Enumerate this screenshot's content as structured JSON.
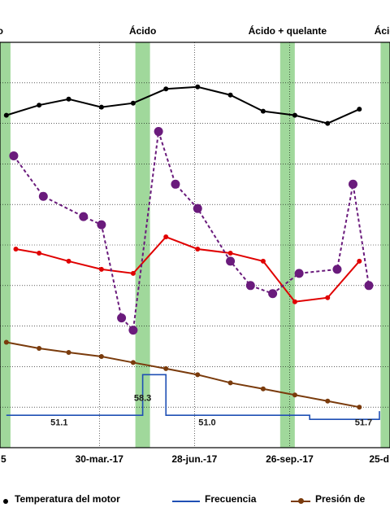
{
  "chart_data": {
    "type": "line",
    "title": "",
    "x_axis": {
      "tick_labels": [
        "30-mar.-17",
        "28-jun.-17",
        "26-sep.-17"
      ],
      "partial_tick_labels": [
        "5",
        "25-d"
      ],
      "range_dates": [
        "2016-12-26",
        "2017-12-30"
      ]
    },
    "treatments": [
      {
        "label": "o",
        "date": "2016-12-29",
        "type": "partial"
      },
      {
        "label": "Ácido",
        "date": "2017-05-10"
      },
      {
        "label": "Ácido + quelante",
        "date": "2017-09-24"
      },
      {
        "label": "Ácido",
        "date": "2017-12-28"
      }
    ],
    "frequency_labels": [
      "51.1",
      "58.3",
      "51.0",
      "51.7"
    ],
    "series": [
      {
        "name": "Temperatura del motor",
        "color": "#000000",
        "points": [
          [
            "2017-01-01",
            8.2
          ],
          [
            "2017-02-01",
            8.45
          ],
          [
            "2017-03-01",
            8.6
          ],
          [
            "2017-04-01",
            8.4
          ],
          [
            "2017-05-01",
            8.5
          ],
          [
            "2017-06-01",
            8.85
          ],
          [
            "2017-07-01",
            8.9
          ],
          [
            "2017-08-01",
            8.7
          ],
          [
            "2017-09-01",
            8.3
          ],
          [
            "2017-10-01",
            8.2
          ],
          [
            "2017-11-01",
            8.0
          ],
          [
            "2017-12-01",
            8.35
          ]
        ]
      },
      {
        "name": "Frecuencia",
        "color": "#1f4fb4",
        "points": [
          [
            "2017-01-01",
            0.8
          ],
          [
            "2017-04-15",
            0.8
          ],
          [
            "2017-05-10",
            1.8
          ],
          [
            "2017-06-01",
            0.8
          ],
          [
            "2017-09-20",
            0.8
          ],
          [
            "2017-10-15",
            0.7
          ],
          [
            "2017-12-20",
            0.9
          ]
        ]
      },
      {
        "name": "Presión de",
        "color": "#7a3b0c",
        "points": [
          [
            "2017-01-01",
            2.6
          ],
          [
            "2017-02-01",
            2.45
          ],
          [
            "2017-03-01",
            2.35
          ],
          [
            "2017-04-01",
            2.25
          ],
          [
            "2017-05-01",
            2.1
          ],
          [
            "2017-06-01",
            1.95
          ],
          [
            "2017-07-01",
            1.8
          ],
          [
            "2017-08-01",
            1.6
          ],
          [
            "2017-09-01",
            1.45
          ],
          [
            "2017-10-01",
            1.3
          ],
          [
            "2017-11-01",
            1.15
          ],
          [
            "2017-12-01",
            1.0
          ]
        ]
      },
      {
        "color": "#e00000",
        "points": [
          [
            "2017-01-10",
            4.9
          ],
          [
            "2017-02-01",
            4.8
          ],
          [
            "2017-03-01",
            4.6
          ],
          [
            "2017-04-01",
            4.4
          ],
          [
            "2017-05-01",
            4.3
          ],
          [
            "2017-06-01",
            5.2
          ],
          [
            "2017-07-01",
            4.9
          ],
          [
            "2017-08-01",
            4.8
          ],
          [
            "2017-09-01",
            4.6
          ],
          [
            "2017-10-01",
            3.6
          ],
          [
            "2017-11-01",
            3.7
          ],
          [
            "2017-12-01",
            4.6
          ]
        ]
      },
      {
        "color": "#6a1b7c",
        "points": [
          [
            "2017-01-08",
            7.2
          ],
          [
            "2017-02-05",
            6.2
          ],
          [
            "2017-03-15",
            5.7
          ],
          [
            "2017-04-01",
            5.5
          ],
          [
            "2017-04-20",
            3.2
          ],
          [
            "2017-05-01",
            2.9
          ],
          [
            "2017-05-25",
            7.8
          ],
          [
            "2017-06-10",
            6.5
          ],
          [
            "2017-07-01",
            5.9
          ],
          [
            "2017-08-01",
            4.6
          ],
          [
            "2017-08-20",
            4.0
          ],
          [
            "2017-09-10",
            3.8
          ],
          [
            "2017-10-05",
            4.3
          ],
          [
            "2017-11-10",
            4.4
          ],
          [
            "2017-11-25",
            6.5
          ],
          [
            "2017-12-10",
            4.0
          ]
        ]
      }
    ]
  }
}
